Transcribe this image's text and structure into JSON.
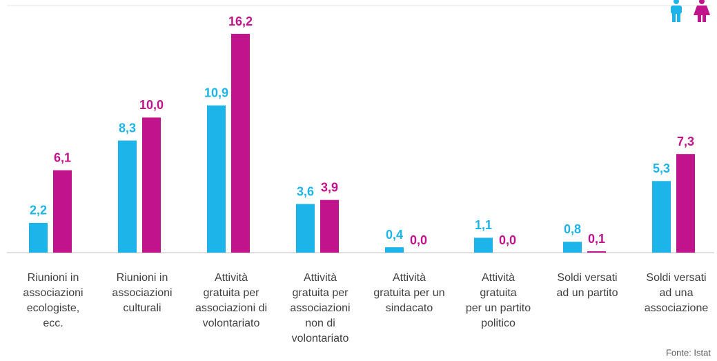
{
  "chart_data": {
    "type": "bar",
    "categories": [
      [
        "Riunioni in",
        "associazioni",
        "ecologiste,",
        "ecc."
      ],
      [
        "Riunioni in",
        "associazioni",
        "culturali"
      ],
      [
        "Attività",
        "gratuita per",
        "associazioni di",
        "volontariato"
      ],
      [
        "Attività",
        "gratuita per",
        "associazioni",
        "non di",
        "volontariato"
      ],
      [
        "Attività",
        "gratuita per un",
        "sindacato"
      ],
      [
        "Attività",
        "gratuita",
        "per un partito",
        "politico"
      ],
      [
        "Soldi versati",
        "ad un partito"
      ],
      [
        "Soldi versati",
        "ad una",
        "associazione"
      ]
    ],
    "series": [
      {
        "color": "#1cb4e9",
        "values": [
          2.2,
          8.3,
          10.9,
          3.6,
          0.4,
          1.1,
          0.8,
          5.3
        ],
        "value_labels": [
          "2,2",
          "8,3",
          "10,9",
          "3,6",
          "0,4",
          "1,1",
          "0,8",
          "5,3"
        ]
      },
      {
        "color": "#c0138c",
        "values": [
          6.1,
          10.0,
          16.2,
          3.9,
          0.0,
          0.0,
          0.1,
          7.3
        ],
        "value_labels": [
          "6,1",
          "10,0",
          "16,2",
          "3,9",
          "0,0",
          "0,0",
          "0,1",
          "7,3"
        ]
      }
    ],
    "source": "Fonte: Istat"
  }
}
